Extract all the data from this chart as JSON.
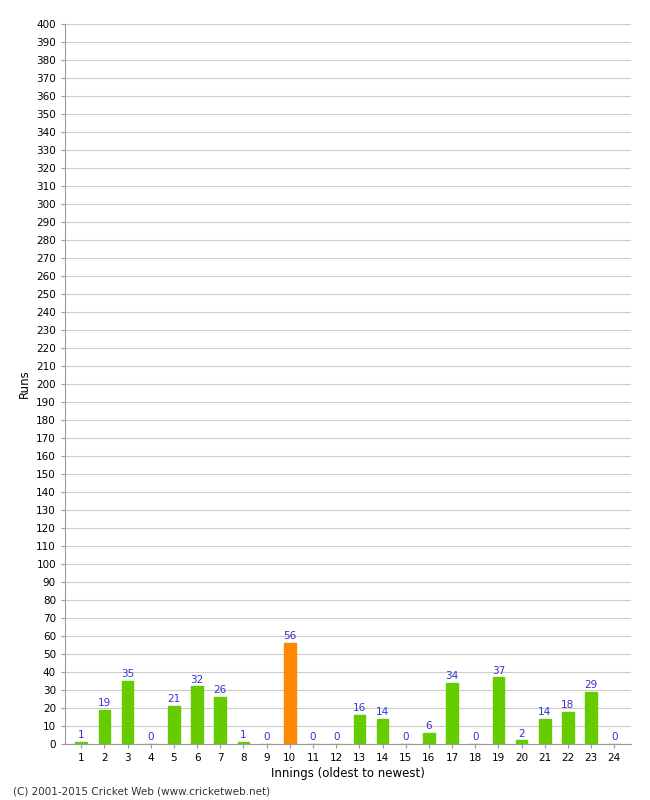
{
  "xlabel": "Innings (oldest to newest)",
  "ylabel": "Runs",
  "innings": [
    1,
    2,
    3,
    4,
    5,
    6,
    7,
    8,
    9,
    10,
    11,
    12,
    13,
    14,
    15,
    16,
    17,
    18,
    19,
    20,
    21,
    22,
    23,
    24
  ],
  "values": [
    1,
    19,
    35,
    0,
    21,
    32,
    26,
    1,
    0,
    56,
    0,
    0,
    16,
    14,
    0,
    6,
    34,
    0,
    37,
    2,
    14,
    18,
    29,
    0
  ],
  "bar_colors": [
    "#66cc00",
    "#66cc00",
    "#66cc00",
    "#66cc00",
    "#66cc00",
    "#66cc00",
    "#66cc00",
    "#66cc00",
    "#66cc00",
    "#ff8800",
    "#66cc00",
    "#66cc00",
    "#66cc00",
    "#66cc00",
    "#66cc00",
    "#66cc00",
    "#66cc00",
    "#66cc00",
    "#66cc00",
    "#66cc00",
    "#66cc00",
    "#66cc00",
    "#66cc00",
    "#66cc00"
  ],
  "ylim": [
    0,
    400
  ],
  "label_color": "#3333cc",
  "background_color": "#ffffff",
  "grid_color": "#cccccc",
  "footer": "(C) 2001-2015 Cricket Web (www.cricketweb.net)",
  "bar_width": 0.5,
  "label_fontsize": 7.5,
  "tick_fontsize": 7.5,
  "axis_label_fontsize": 8.5,
  "footer_fontsize": 7.5
}
